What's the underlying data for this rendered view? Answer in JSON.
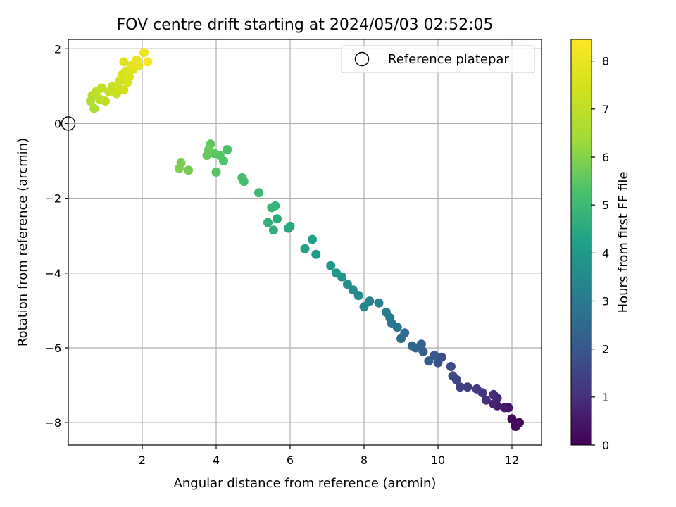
{
  "chart_data": {
    "type": "scatter",
    "title": "FOV centre drift starting at 2024/05/03 02:52:05",
    "xlabel": "Angular distance from reference (arcmin)",
    "ylabel": "Rotation from reference (arcmin)",
    "xlim": [
      0,
      12.8
    ],
    "ylim": [
      -8.6,
      2.25
    ],
    "xticks": [
      2,
      4,
      6,
      8,
      10,
      12
    ],
    "yticks": [
      2,
      0,
      -2,
      -4,
      -6,
      -8
    ],
    "grid": true,
    "legend": {
      "placement": "top-right",
      "entries": [
        "Reference platepar"
      ]
    },
    "reference_point": {
      "x": 0,
      "y": 0
    },
    "colorbar": {
      "label": "Hours from first FF file",
      "range": [
        0,
        8.45
      ],
      "ticks": [
        0,
        1,
        2,
        3,
        4,
        5,
        6,
        7,
        8
      ],
      "colormap": "viridis"
    },
    "series": [
      {
        "points": [
          [
            12.2,
            -8.0,
            0.05
          ],
          [
            12.1,
            -8.1,
            0.1
          ],
          [
            12.0,
            -7.9,
            0.2
          ],
          [
            12.1,
            -8.05,
            0.25
          ],
          [
            11.9,
            -7.6,
            0.4
          ],
          [
            11.8,
            -7.6,
            0.5
          ],
          [
            11.6,
            -7.55,
            0.6
          ],
          [
            11.5,
            -7.5,
            0.7
          ],
          [
            11.6,
            -7.35,
            0.8
          ],
          [
            11.5,
            -7.25,
            0.9
          ],
          [
            11.3,
            -7.4,
            1.0
          ],
          [
            11.2,
            -7.2,
            1.1
          ],
          [
            11.05,
            -7.1,
            1.2
          ],
          [
            10.8,
            -7.05,
            1.3
          ],
          [
            10.6,
            -7.05,
            1.4
          ],
          [
            10.5,
            -6.85,
            1.5
          ],
          [
            10.4,
            -6.75,
            1.6
          ],
          [
            10.35,
            -6.5,
            1.7
          ],
          [
            10.1,
            -6.25,
            1.8
          ],
          [
            10.0,
            -6.4,
            1.9
          ],
          [
            9.9,
            -6.2,
            2.0
          ],
          [
            9.75,
            -6.35,
            2.1
          ],
          [
            9.6,
            -6.1,
            2.2
          ],
          [
            9.55,
            -5.9,
            2.3
          ],
          [
            9.4,
            -6.0,
            2.4
          ],
          [
            9.3,
            -5.95,
            2.5
          ],
          [
            9.1,
            -5.6,
            2.6
          ],
          [
            9.0,
            -5.75,
            2.7
          ],
          [
            8.9,
            -5.45,
            2.8
          ],
          [
            8.75,
            -5.35,
            2.9
          ],
          [
            8.7,
            -5.2,
            3.0
          ],
          [
            8.6,
            -5.05,
            3.1
          ],
          [
            8.4,
            -4.8,
            3.2
          ],
          [
            8.15,
            -4.75,
            3.3
          ],
          [
            8.0,
            -4.9,
            3.4
          ],
          [
            7.85,
            -4.6,
            3.5
          ],
          [
            7.7,
            -4.45,
            3.6
          ],
          [
            7.55,
            -4.3,
            3.7
          ],
          [
            7.4,
            -4.1,
            3.8
          ],
          [
            7.25,
            -4.0,
            3.9
          ],
          [
            7.1,
            -3.8,
            4.0
          ],
          [
            6.7,
            -3.5,
            4.1
          ],
          [
            6.6,
            -3.1,
            4.2
          ],
          [
            6.4,
            -3.35,
            4.3
          ],
          [
            6.0,
            -2.75,
            4.4
          ],
          [
            5.95,
            -2.8,
            4.5
          ],
          [
            5.65,
            -2.55,
            4.6
          ],
          [
            5.55,
            -2.85,
            4.65
          ],
          [
            5.4,
            -2.65,
            4.7
          ],
          [
            5.6,
            -2.2,
            4.8
          ],
          [
            5.5,
            -2.25,
            4.85
          ],
          [
            5.15,
            -1.85,
            5.0
          ],
          [
            4.75,
            -1.55,
            5.1
          ],
          [
            4.7,
            -1.45,
            5.15
          ],
          [
            4.3,
            -0.7,
            5.3
          ],
          [
            4.2,
            -1.0,
            5.35
          ],
          [
            4.1,
            -0.85,
            5.4
          ],
          [
            4.0,
            -1.3,
            5.45
          ],
          [
            3.95,
            -0.8,
            5.5
          ],
          [
            3.85,
            -0.55,
            5.55
          ],
          [
            3.75,
            -0.85,
            5.6
          ],
          [
            3.8,
            -0.7,
            5.65
          ],
          [
            3.25,
            -1.25,
            5.8
          ],
          [
            3.05,
            -1.05,
            5.85
          ],
          [
            3.0,
            -1.2,
            5.9
          ],
          [
            0.7,
            0.4,
            6.6
          ],
          [
            0.6,
            0.6,
            6.7
          ],
          [
            0.65,
            0.75,
            6.8
          ],
          [
            0.85,
            0.65,
            6.9
          ],
          [
            0.75,
            0.85,
            7.0
          ],
          [
            0.9,
            0.95,
            7.05
          ],
          [
            1.0,
            0.6,
            7.1
          ],
          [
            1.1,
            0.85,
            7.15
          ],
          [
            1.2,
            1.0,
            7.2
          ],
          [
            1.3,
            0.8,
            7.25
          ],
          [
            1.4,
            1.15,
            7.3
          ],
          [
            1.35,
            0.95,
            7.35
          ],
          [
            1.5,
            1.2,
            7.4
          ],
          [
            1.5,
            0.9,
            7.45
          ],
          [
            1.6,
            1.1,
            7.5
          ],
          [
            1.45,
            1.3,
            7.55
          ],
          [
            1.55,
            1.4,
            7.6
          ],
          [
            1.65,
            1.25,
            7.65
          ],
          [
            1.75,
            1.45,
            7.7
          ],
          [
            1.5,
            1.65,
            7.75
          ],
          [
            1.7,
            1.55,
            7.8
          ],
          [
            1.8,
            1.6,
            7.85
          ],
          [
            1.9,
            1.55,
            7.95
          ],
          [
            1.85,
            1.7,
            8.0
          ],
          [
            2.05,
            1.9,
            8.15
          ],
          [
            2.15,
            1.65,
            8.3
          ]
        ]
      }
    ]
  }
}
